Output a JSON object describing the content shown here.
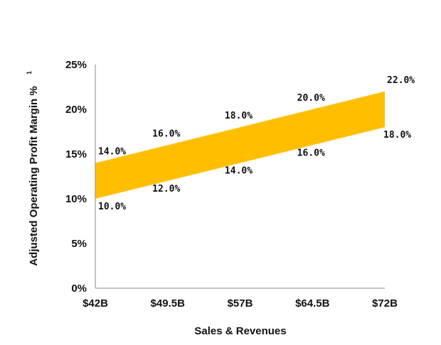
{
  "chart_data": {
    "type": "area",
    "title": "",
    "categories": [
      "$42B",
      "$49.5B",
      "$57B",
      "$64.5B",
      "$72B"
    ],
    "x": [
      42,
      49.5,
      57,
      64.5,
      72
    ],
    "series": [
      {
        "name": "Upper",
        "values": [
          14.0,
          16.0,
          18.0,
          20.0,
          22.0
        ],
        "labels": [
          "14.0%",
          "16.0%",
          "18.0%",
          "20.0%",
          "22.0%"
        ]
      },
      {
        "name": "Lower",
        "values": [
          10.0,
          12.0,
          14.0,
          16.0,
          18.0
        ],
        "labels": [
          "10.0%",
          "12.0%",
          "14.0%",
          "16.0%",
          "18.0%"
        ]
      }
    ],
    "xlabel": "Sales & Revenues",
    "ylabel": "Adjusted Operating Profit Margin %",
    "ylabel_sup": "1",
    "ylim": [
      0,
      25
    ],
    "xlim": [
      42,
      72
    ],
    "yticks": [
      0,
      5,
      10,
      15,
      20,
      25
    ],
    "ytick_labels": [
      "0%",
      "5%",
      "10%",
      "15%",
      "20%",
      "25%"
    ],
    "band_color": "#FFBF00",
    "grid": false
  }
}
